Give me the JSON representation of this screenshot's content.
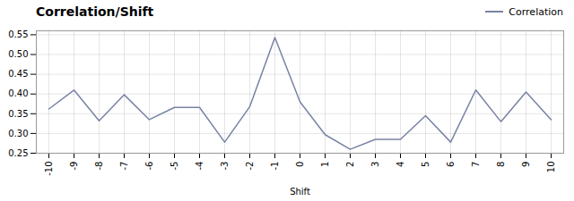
{
  "chart_data": {
    "type": "line",
    "title": "Correlation/Shift",
    "xlabel": "Shift",
    "x": [
      -10,
      -9,
      -8,
      -7,
      -6,
      -5,
      -4,
      -3,
      -2,
      -1,
      0,
      1,
      2,
      3,
      4,
      5,
      6,
      7,
      8,
      9,
      10
    ],
    "series": [
      {
        "name": "Correlation",
        "color": "#7882a4",
        "values": [
          0.362,
          0.41,
          0.332,
          0.398,
          0.335,
          0.366,
          0.366,
          0.278,
          0.368,
          0.543,
          0.38,
          0.297,
          0.26,
          0.285,
          0.285,
          0.345,
          0.278,
          0.41,
          0.33,
          0.405,
          0.335
        ]
      }
    ],
    "xlim": [
      -10.5,
      10.5
    ],
    "xticks": [
      -10,
      -9,
      -8,
      -7,
      -6,
      -5,
      -4,
      -3,
      -2,
      -1,
      0,
      1,
      2,
      3,
      4,
      5,
      6,
      7,
      8,
      9,
      10
    ],
    "ylim": [
      0.25,
      0.56
    ],
    "yticks": [
      0.25,
      {
        "value": 0.3,
        "label": "0.30"
      },
      0.35,
      {
        "value": 0.4,
        "label": "0.40"
      },
      0.45,
      {
        "value": 0.5,
        "label": "0.50"
      },
      0.55
    ],
    "grid": true,
    "legend": "upper right"
  }
}
